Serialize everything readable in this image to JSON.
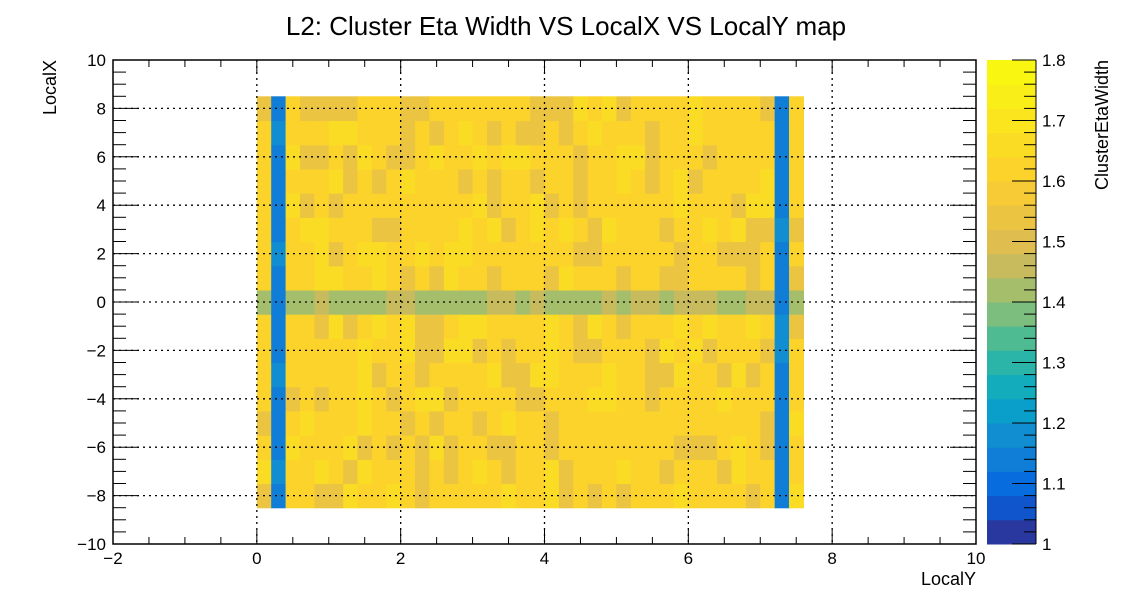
{
  "chart_data": {
    "type": "heatmap",
    "title": "L2: Cluster Eta Width VS LocalX VS LocalY map",
    "xlabel": "LocalY",
    "ylabel": "LocalX",
    "zlabel": "ClusterEtaWidth",
    "xlim": [
      -2,
      10
    ],
    "ylim": [
      -10,
      10
    ],
    "zlim": [
      1,
      1.8
    ],
    "grid": true,
    "x_ticks": [
      "−2",
      "0",
      "2",
      "4",
      "6",
      "8",
      "10"
    ],
    "y_ticks": [
      "−10",
      "−8",
      "−6",
      "−4",
      "−2",
      "0",
      "2",
      "4",
      "6",
      "8",
      "10"
    ],
    "z_ticks": [
      "1",
      "1.1",
      "1.2",
      "1.3",
      "1.4",
      "1.5",
      "1.6",
      "1.7",
      "1.8"
    ],
    "bins": {
      "x_range": [
        0,
        7.6
      ],
      "y_range": [
        -8.5,
        8.5
      ],
      "nx": 38,
      "ny": 17
    },
    "pattern": {
      "base_value": 1.6,
      "low_columns": [
        {
          "x_range": [
            0.2,
            0.4
          ],
          "value": 1.15
        },
        {
          "x_range": [
            7.2,
            7.4
          ],
          "value": 1.15
        }
      ],
      "low_rows": [
        {
          "y_range": [
            -0.5,
            0.5
          ],
          "value": 1.43
        }
      ],
      "crossing_value": 1.12
    }
  }
}
